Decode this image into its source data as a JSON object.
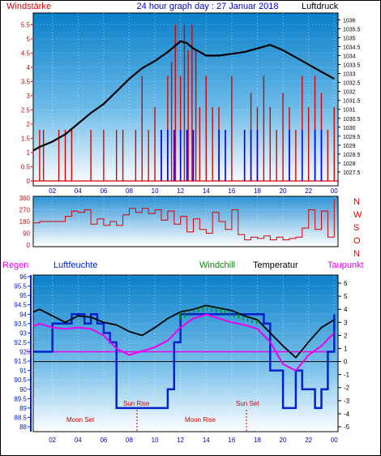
{
  "header": {
    "left_label": "Windstärke",
    "title": "24 hour graph day : 27 Januar 2018",
    "right_label": "Luftdruck"
  },
  "panel3_labels": {
    "regen": "Regen",
    "luftfeuchte": "Luftfeuchte",
    "windchill": "Windchill",
    "temperatur": "Temperatur",
    "taupunkt": "Taupunkt"
  },
  "colors": {
    "windstaerke": "#dd0000",
    "luftdruck": "#000000",
    "wind_blue": "#0000ee",
    "luftfeuchte": "#0022cc",
    "temperatur": "#000000",
    "taupunkt": "#ee00ee",
    "windchill": "#008800",
    "regen": "#ee00ee",
    "bg_top": "#0a7fc8",
    "bg_bottom": "#ffffff"
  },
  "chart_data": [
    {
      "type": "line",
      "name": "wind-pressure",
      "x_ticks": [
        "02",
        "04",
        "06",
        "08",
        "10",
        "12",
        "14",
        "16",
        "18",
        "20",
        "22",
        "00"
      ],
      "y_left_ticks": [
        "0",
        "0.5",
        "1",
        "1.5",
        "2",
        "2.5",
        "3",
        "3.5",
        "4",
        "4.5",
        "5",
        "5.5"
      ],
      "y_right_ticks": [
        "1027.5",
        "1028",
        "1028.5",
        "1029",
        "1029.5",
        "1030",
        "1030.5",
        "1031",
        "1031.5",
        "1032",
        "1032.5",
        "1033",
        "1033.5",
        "1034",
        "1034.5",
        "1035",
        "1035.5",
        "1036"
      ],
      "ylim_left": [
        0,
        5.8
      ],
      "ylim_right": [
        1027,
        1036.2
      ],
      "xlim": [
        0.5,
        24.3
      ],
      "luftdruck": {
        "x": [
          0.5,
          1,
          2,
          3,
          4,
          5,
          6,
          7,
          8,
          9,
          10,
          11,
          11.5,
          12,
          12.5,
          13,
          14,
          15,
          16,
          17,
          18,
          19,
          20,
          21,
          22,
          23,
          24
        ],
        "y": [
          1028.7,
          1028.9,
          1029.2,
          1029.6,
          1030.2,
          1030.8,
          1031.3,
          1032,
          1032.7,
          1033.3,
          1033.7,
          1034.2,
          1034.5,
          1034.8,
          1034.7,
          1034.4,
          1034.0,
          1034.0,
          1034.1,
          1034.2,
          1034.4,
          1034.6,
          1034.3,
          1033.9,
          1033.5,
          1033.1,
          1032.7
        ]
      },
      "wind_red": {
        "x": [
          1,
          1.3,
          2.5,
          3,
          3.5,
          5,
          6,
          7,
          7.5,
          8.5,
          9,
          9.5,
          10,
          10.5,
          11,
          11.3,
          11.6,
          12,
          12.3,
          12.6,
          12.9,
          13.2,
          13.5,
          14,
          14.5,
          15,
          16,
          17,
          17.5,
          18,
          18.5,
          19,
          19.5,
          20,
          20.5,
          21,
          21.5,
          22,
          22.5,
          23,
          23.5,
          24
        ],
        "y": [
          1.8,
          1.8,
          1.8,
          1.8,
          1.8,
          1.8,
          1.8,
          1.8,
          1.8,
          1.8,
          3.7,
          1.8,
          2.6,
          1.8,
          3.7,
          4.2,
          5.5,
          3.7,
          5.5,
          4.6,
          5.5,
          4.6,
          2.6,
          3.7,
          2.6,
          2.6,
          3.7,
          1.8,
          3.1,
          2.6,
          3.7,
          2.6,
          1.8,
          3.1,
          2.6,
          1.8,
          3.7,
          2.6,
          3.7,
          3.1,
          1.8,
          2.6
        ]
      },
      "wind_blue": {
        "x": [
          10.5,
          11,
          11.5,
          12,
          12.5,
          13,
          15,
          15.5,
          17,
          17.5,
          18,
          20.5,
          21.5,
          22.5,
          23
        ],
        "y": [
          1.8,
          1.8,
          1.8,
          1.8,
          1.8,
          1.8,
          1.8,
          1.8,
          1.8,
          1.8,
          1.8,
          1.8,
          1.8,
          1.8,
          1.8
        ]
      }
    },
    {
      "type": "line",
      "name": "wind-direction",
      "x_ticks": [
        "02",
        "04",
        "06",
        "08",
        "10",
        "12",
        "14",
        "16",
        "18",
        "20",
        "22",
        "00"
      ],
      "y_left_ticks": [
        "0",
        "90",
        "180",
        "270",
        "360"
      ],
      "y_right_labels": [
        "N",
        "W",
        "S",
        "O",
        "N"
      ],
      "ylim": [
        0,
        360
      ],
      "xlim": [
        0.5,
        24.3
      ],
      "direction": {
        "x": [
          0.5,
          1,
          2,
          3,
          3.5,
          4,
          4.5,
          5,
          5.5,
          6,
          6.5,
          7,
          7.5,
          8,
          8.5,
          9,
          9.5,
          10,
          10.5,
          11,
          11.5,
          12,
          12.5,
          13,
          13.5,
          14,
          14.5,
          15,
          15.5,
          16,
          16.5,
          17,
          17.5,
          18,
          18.5,
          19,
          19.5,
          20,
          20.5,
          21,
          21.5,
          22,
          22.5,
          23,
          23.5,
          24
        ],
        "y": [
          170,
          180,
          180,
          220,
          260,
          250,
          270,
          160,
          200,
          150,
          180,
          150,
          230,
          280,
          250,
          280,
          240,
          270,
          190,
          260,
          160,
          220,
          100,
          200,
          120,
          90,
          250,
          180,
          120,
          270,
          80,
          40,
          60,
          50,
          70,
          40,
          60,
          40,
          50,
          60,
          130,
          270,
          120,
          260,
          60,
          350
        ]
      }
    },
    {
      "type": "line",
      "name": "humidity-temperature",
      "x_ticks": [
        "02",
        "04",
        "06",
        "08",
        "10",
        "12",
        "14",
        "16",
        "18",
        "20",
        "22",
        "00"
      ],
      "y_left_ticks": [
        "88",
        "88.5",
        "89",
        "89.5",
        "90",
        "90.5",
        "91",
        "91.5",
        "92",
        "92.5",
        "93",
        "93.5",
        "94",
        "94.5",
        "95",
        "95.5",
        "96"
      ],
      "y_right_ticks": [
        "-5",
        "-4",
        "-3",
        "-2",
        "-1",
        "0",
        "1",
        "2",
        "3",
        "4",
        "5",
        "6"
      ],
      "ylim_left": [
        88,
        96
      ],
      "ylim_right": [
        -5,
        6.5
      ],
      "xlim": [
        0.5,
        24.3
      ],
      "regen_zero_label": "0",
      "annotations": [
        "Sun Rise",
        "Sun Set",
        "Moon Set",
        "Moon Rise"
      ],
      "luftfeuchte": {
        "x": [
          0.5,
          1.5,
          2,
          3,
          3.5,
          4,
          4.5,
          5,
          5.5,
          6,
          6.5,
          7,
          8,
          9,
          9.5,
          10,
          11,
          11.5,
          12,
          13,
          14,
          15,
          16,
          17,
          18,
          18.5,
          19,
          20,
          20.5,
          21,
          21.5,
          22,
          22.5,
          23,
          23.5,
          24
        ],
        "y": [
          92,
          92,
          93.5,
          93.5,
          94,
          94,
          93.5,
          94,
          93.5,
          93,
          92.5,
          89,
          89,
          89,
          89,
          89,
          90,
          92.5,
          94,
          94,
          94,
          94,
          94,
          94,
          94,
          93.5,
          91,
          89,
          89,
          91,
          90,
          90,
          89,
          90,
          92,
          94
        ]
      },
      "temperatur": {
        "x": [
          0.5,
          1,
          2,
          3,
          4,
          5,
          6,
          7,
          8,
          9,
          10,
          11,
          12,
          13,
          14,
          15,
          16,
          17,
          18,
          19,
          20,
          21,
          22,
          23,
          24
        ],
        "y": [
          3.8,
          4.0,
          3.5,
          3.0,
          3.5,
          3.4,
          3.0,
          2.8,
          2.3,
          2.0,
          2.6,
          3.3,
          3.8,
          4.0,
          4.3,
          4.1,
          3.9,
          3.5,
          3.2,
          2.2,
          1.2,
          0.3,
          1.5,
          2.6,
          3.2
        ]
      },
      "taupunkt": {
        "x": [
          0.5,
          1,
          2,
          3,
          4,
          5,
          6,
          7,
          8,
          9,
          10,
          11,
          12,
          13,
          14,
          15,
          16,
          17,
          18,
          19,
          20,
          21,
          22,
          23,
          24
        ],
        "y": [
          2.7,
          2.9,
          2.6,
          2.5,
          2.6,
          2.5,
          2.0,
          1.0,
          0.5,
          0.8,
          1.1,
          1.6,
          2.6,
          3.3,
          3.6,
          3.3,
          3.0,
          2.8,
          2.5,
          1.5,
          -0.2,
          -0.7,
          0.5,
          1.2,
          2.2
        ]
      },
      "regen": {
        "x": [
          0.5,
          24
        ],
        "y": [
          92,
          92
        ]
      }
    }
  ]
}
